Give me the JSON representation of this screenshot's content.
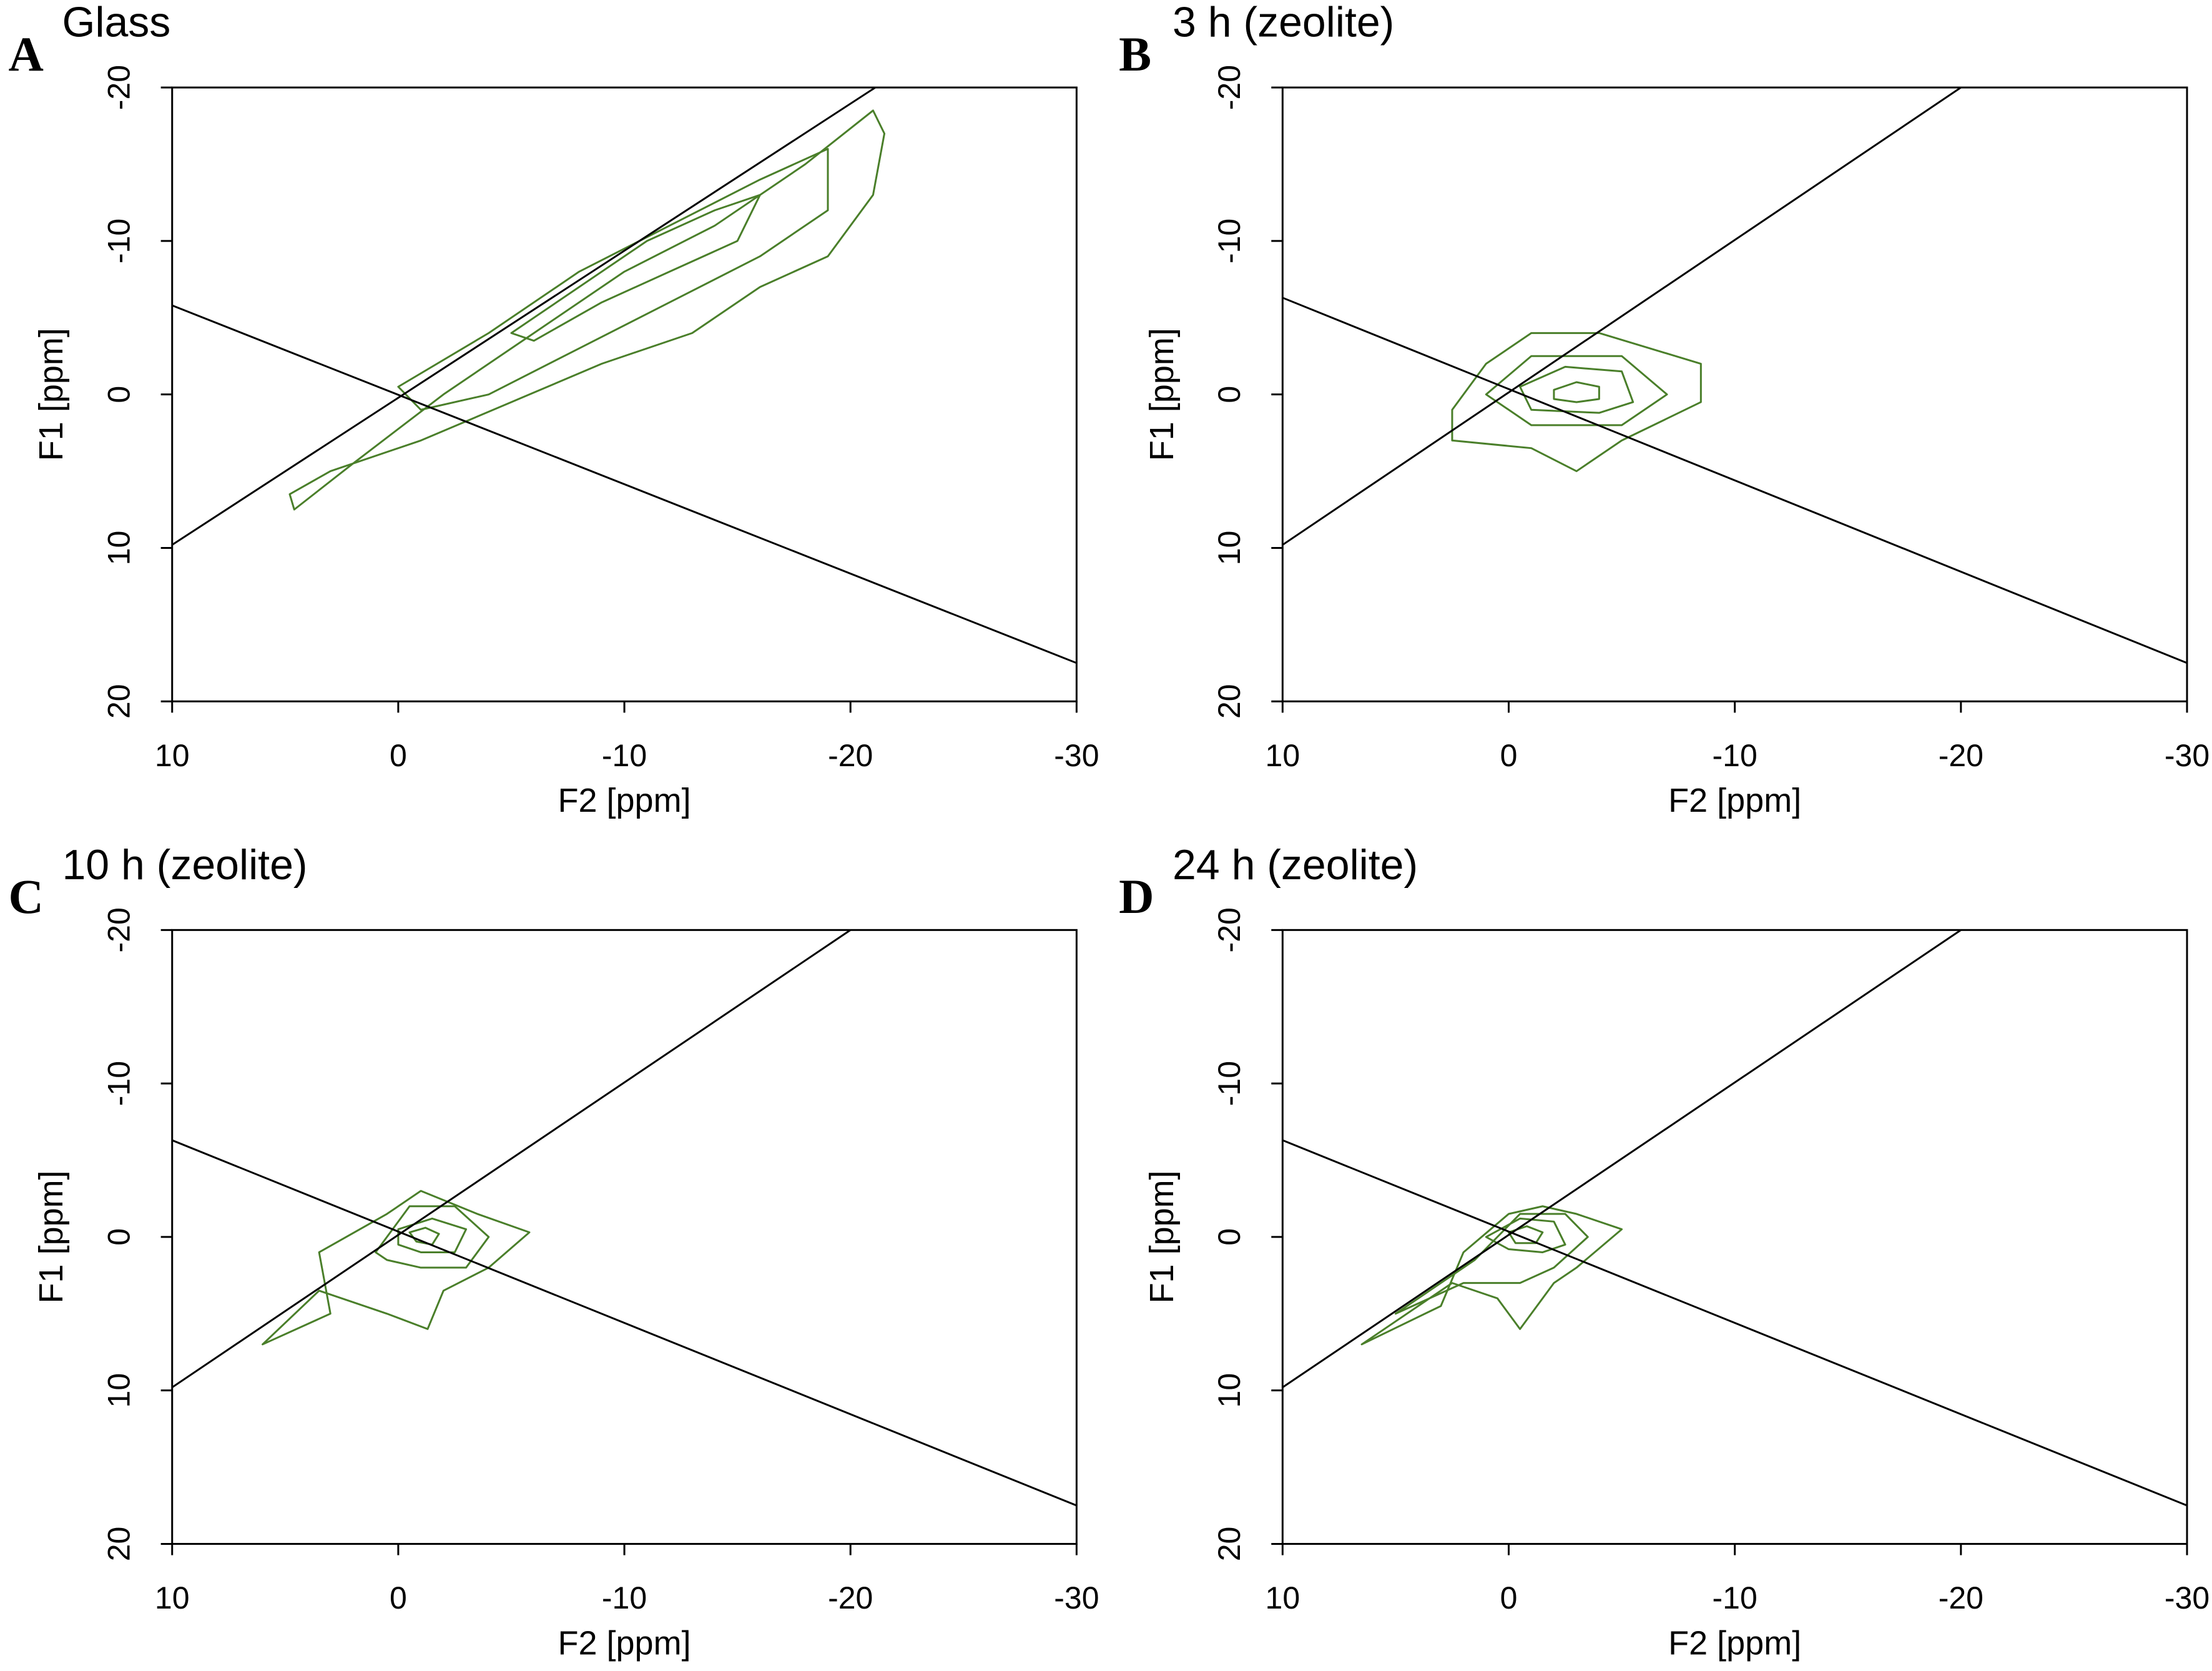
{
  "chart_data": [
    {
      "type": "contour",
      "panel": "A",
      "title": "Glass",
      "x_label": "F2 [ppm]",
      "y_label": "F1 [ppm]",
      "xlim": [
        10,
        -30
      ],
      "ylim": [
        20,
        -20
      ],
      "xticks": [
        10,
        0,
        -10,
        -20,
        -30
      ],
      "yticks": [
        -20,
        -10,
        0,
        10,
        20
      ],
      "line_color": "#000000",
      "contour_color": "#4a7f2a",
      "lines": [
        {
          "x": [
            10,
            -21.1
          ],
          "y": [
            9.8,
            -20
          ]
        },
        {
          "x": [
            10,
            -30
          ],
          "y": [
            -5.8,
            17.5
          ]
        }
      ],
      "contours": [
        {
          "x": [
            4.6,
            2,
            -2,
            -6,
            -10,
            -14,
            -18,
            -21,
            -21.5,
            -21,
            -19,
            -16,
            -13,
            -9,
            -5,
            -1,
            3,
            4.8
          ],
          "y": [
            7.5,
            4.5,
            0,
            -4,
            -8,
            -11,
            -15,
            -18.5,
            -17,
            -13,
            -9,
            -7,
            -4,
            -2,
            0.5,
            3,
            5,
            6.5
          ]
        },
        {
          "x": [
            0,
            -4,
            -8,
            -12,
            -16,
            -19,
            -19,
            -16,
            -12,
            -8,
            -4,
            -1
          ],
          "y": [
            -0.5,
            -4,
            -8,
            -11,
            -14,
            -16,
            -12,
            -9,
            -6,
            -3,
            0,
            1
          ]
        },
        {
          "x": [
            -5,
            -8,
            -11,
            -14,
            -16,
            -15,
            -12,
            -9,
            -6
          ],
          "y": [
            -4,
            -7,
            -10,
            -12,
            -13,
            -10,
            -8,
            -6,
            -3.5
          ]
        }
      ]
    },
    {
      "type": "contour",
      "panel": "B",
      "title": "3 h (zeolite)",
      "x_label": "F2 [ppm]",
      "y_label": "F1 [ppm]",
      "xlim": [
        10,
        -30
      ],
      "ylim": [
        20,
        -20
      ],
      "xticks": [
        10,
        0,
        -10,
        -20,
        -30
      ],
      "yticks": [
        -20,
        -10,
        0,
        10,
        20
      ],
      "line_color": "#000000",
      "contour_color": "#4a7f2a",
      "lines": [
        {
          "x": [
            10,
            -20
          ],
          "y": [
            9.8,
            -20
          ]
        },
        {
          "x": [
            10,
            -30
          ],
          "y": [
            -6.3,
            17.5
          ]
        }
      ],
      "contours": [
        {
          "x": [
            2.5,
            1,
            -1,
            -4,
            -8.5,
            -8.5,
            -5,
            -3,
            -1,
            2.5
          ],
          "y": [
            1,
            -2,
            -4,
            -4,
            -2,
            0.5,
            3,
            5,
            3.5,
            3
          ]
        },
        {
          "x": [
            1,
            -1,
            -5,
            -7,
            -5,
            -1
          ],
          "y": [
            0,
            -2.5,
            -2.5,
            0,
            2,
            2
          ]
        },
        {
          "x": [
            -0.5,
            -2.5,
            -5,
            -5.5,
            -4,
            -1
          ],
          "y": [
            -0.5,
            -1.8,
            -1.5,
            0.5,
            1.2,
            1
          ]
        },
        {
          "x": [
            -2,
            -3,
            -4,
            -4,
            -3,
            -2
          ],
          "y": [
            -0.3,
            -0.8,
            -0.5,
            0.3,
            0.5,
            0.3
          ]
        }
      ]
    },
    {
      "type": "contour",
      "panel": "C",
      "title": "10 h (zeolite)",
      "x_label": "F2 [ppm]",
      "y_label": "F1 [ppm]",
      "xlim": [
        10,
        -30
      ],
      "ylim": [
        20,
        -20
      ],
      "xticks": [
        10,
        0,
        -10,
        -20,
        -30
      ],
      "yticks": [
        -20,
        -10,
        0,
        10,
        20
      ],
      "line_color": "#000000",
      "contour_color": "#4a7f2a",
      "lines": [
        {
          "x": [
            10,
            -20
          ],
          "y": [
            9.8,
            -20
          ]
        },
        {
          "x": [
            10,
            -30
          ],
          "y": [
            -6.3,
            17.5
          ]
        }
      ],
      "contours": [
        {
          "x": [
            6,
            3,
            3.5,
            0.5,
            -1,
            -3.5,
            -5.8,
            -4,
            -2,
            -1.3,
            0.5,
            3.5
          ],
          "y": [
            7,
            5,
            1,
            -1.5,
            -3,
            -1.5,
            -0.3,
            2,
            3.5,
            6,
            5,
            3.5
          ]
        },
        {
          "x": [
            1,
            -0.5,
            -2.5,
            -4,
            -3,
            -1,
            0.5
          ],
          "y": [
            1,
            -2,
            -2,
            0,
            2,
            2,
            1.5
          ]
        },
        {
          "x": [
            0,
            -1.5,
            -3,
            -2.5,
            -1,
            0
          ],
          "y": [
            -0.5,
            -1.2,
            -0.5,
            1,
            1,
            0.5
          ]
        },
        {
          "x": [
            -0.5,
            -1.2,
            -1.8,
            -1.5,
            -0.8
          ],
          "y": [
            -0.3,
            -0.6,
            -0.2,
            0.5,
            0.3
          ]
        }
      ]
    },
    {
      "type": "contour",
      "panel": "D",
      "title": "24 h (zeolite)",
      "x_label": "F2 [ppm]",
      "y_label": "F1 [ppm]",
      "xlim": [
        10,
        -30
      ],
      "ylim": [
        20,
        -20
      ],
      "xticks": [
        10,
        0,
        -10,
        -20,
        -30
      ],
      "yticks": [
        -20,
        -10,
        0,
        10,
        20
      ],
      "line_color": "#000000",
      "contour_color": "#4a7f2a",
      "lines": [
        {
          "x": [
            10,
            -20
          ],
          "y": [
            9.8,
            -20
          ]
        },
        {
          "x": [
            10,
            -30
          ],
          "y": [
            -6.3,
            17.5
          ]
        }
      ],
      "contours": [
        {
          "x": [
            6.5,
            3,
            2,
            0,
            -1.5,
            -3,
            -5,
            -3,
            -2,
            -0.5,
            0.5,
            2.5
          ],
          "y": [
            7,
            4.5,
            1,
            -1.5,
            -2,
            -1.5,
            -0.5,
            2,
            3,
            6,
            4,
            3
          ]
        },
        {
          "x": [
            5,
            1.5,
            -0.5,
            -2.5,
            -3.5,
            -2,
            -0.5,
            2
          ],
          "y": [
            5,
            1.5,
            -1.5,
            -1.5,
            0,
            2,
            3,
            3
          ]
        },
        {
          "x": [
            1,
            -0.5,
            -2,
            -2.5,
            -1.5,
            0
          ],
          "y": [
            0,
            -1.2,
            -1,
            0.5,
            1,
            0.8
          ]
        },
        {
          "x": [
            0,
            -0.8,
            -1.5,
            -1.2,
            -0.3
          ],
          "y": [
            -0.3,
            -0.7,
            -0.3,
            0.4,
            0.4
          ]
        }
      ]
    }
  ]
}
